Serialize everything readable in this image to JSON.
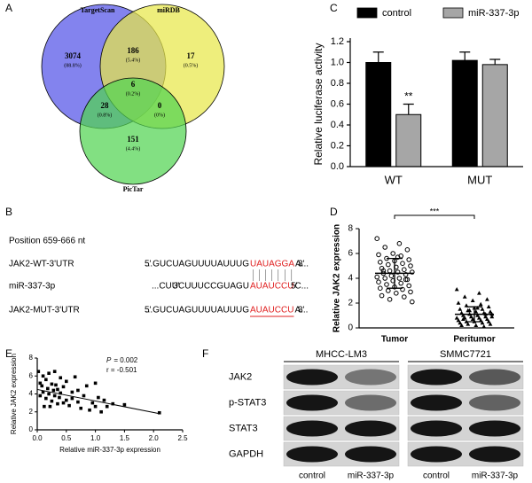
{
  "panel_labels": [
    "A",
    "B",
    "C",
    "D",
    "E",
    "F"
  ],
  "venn": {
    "sets": [
      {
        "name": "TargetScan",
        "color": "#5353e8"
      },
      {
        "name": "miRDB",
        "color": "#e8e84a"
      },
      {
        "name": "PicTar",
        "color": "#52d452"
      }
    ],
    "regions": [
      {
        "count": 3074,
        "percent": "(88.8%)"
      },
      {
        "count": 186,
        "percent": "(5.4%)"
      },
      {
        "count": 17,
        "percent": "(0.5%)"
      },
      {
        "count": 6,
        "percent": "(0.2%)"
      },
      {
        "count": 28,
        "percent": "(0.8%)"
      },
      {
        "count": 0,
        "percent": "(0%)"
      },
      {
        "count": 151,
        "percent": "(4.4%)"
      }
    ]
  },
  "sequence": {
    "position": "Position 659-666 nt",
    "rows": [
      {
        "label": "JAK2-WT-3'UTR",
        "start": "5'",
        "seq": "...GUCUAGUUUUAUUUG",
        "site": "UAUAGGA",
        "tail": "A...",
        "end": "3'"
      },
      {
        "label": "miR-337-3p",
        "start": "3'",
        "seq": "...CUUCUUUCCGUAGU",
        "site": "AUAUCCU",
        "tail": "C...",
        "end": "5'"
      },
      {
        "label": "JAK2-MUT-3'UTR",
        "start": "5'",
        "seq": "...GUCUAGUUUUAUUUG",
        "site": "AUAUCCU",
        "tail": "A...",
        "end": "3'"
      }
    ]
  },
  "chart_data": [
    {
      "type": "bar",
      "ylabel": "Relative luciferase activity",
      "categories": [
        "WT",
        "MUT"
      ],
      "series": [
        {
          "name": "control",
          "color": "#000000",
          "values": [
            1.0,
            1.02
          ],
          "errors": [
            0.1,
            0.08
          ]
        },
        {
          "name": "miR-337-3p",
          "color": "#a6a6a6",
          "values": [
            0.5,
            0.98
          ],
          "errors": [
            0.1,
            0.05
          ]
        }
      ],
      "ylim": [
        0,
        1.2
      ],
      "yticks": [
        {
          "value": 0,
          "label": "0.0"
        },
        0.2,
        0.4,
        0.6,
        0.8,
        {
          "value": 1,
          "label": "1.0"
        },
        1.2
      ],
      "legend": "top",
      "annotations": [
        "**"
      ]
    },
    {
      "type": "dot",
      "ylabel": "Relative JAK2 expression",
      "groups": [
        {
          "name": "Tumor",
          "marker": "circle",
          "mean": 4.4,
          "sd": 1.2,
          "values": [
            7.2,
            6.8,
            6.5,
            6.3,
            6.0,
            5.9,
            5.8,
            5.6,
            5.5,
            5.4,
            5.3,
            5.2,
            5.1,
            5.0,
            4.9,
            4.8,
            4.7,
            4.6,
            4.5,
            4.5,
            4.4,
            4.3,
            4.2,
            4.1,
            4.0,
            4.0,
            3.9,
            3.8,
            3.7,
            3.6,
            3.5,
            3.4,
            3.3,
            3.2,
            3.1,
            3.0,
            2.9,
            2.8,
            2.6,
            2.5,
            2.3,
            2.1,
            5.7,
            4.6,
            3.9
          ]
        },
        {
          "name": "Peritumor",
          "marker": "triangle",
          "mean": 1.1,
          "sd": 0.6,
          "values": [
            3.1,
            2.8,
            2.5,
            2.3,
            2.2,
            2.0,
            1.9,
            1.8,
            1.7,
            1.6,
            1.5,
            1.5,
            1.4,
            1.3,
            1.3,
            1.2,
            1.2,
            1.1,
            1.1,
            1.0,
            1.0,
            0.9,
            0.9,
            0.8,
            0.8,
            0.8,
            0.7,
            0.7,
            0.6,
            0.6,
            0.5,
            0.5,
            0.5,
            0.4,
            0.4,
            0.3,
            0.3,
            0.2,
            0.2,
            0.1,
            1.4,
            0.9,
            1.6,
            0.7,
            1.1
          ]
        }
      ],
      "ylim": [
        0,
        8
      ],
      "yticks": [
        0,
        2,
        4,
        6,
        8
      ],
      "annotations": [
        "***"
      ]
    },
    {
      "type": "scatter",
      "xlabel": "Relative miR-337-3p expression",
      "ylabel": "Relative JAK2 expression",
      "x": [
        0.02,
        0.05,
        0.05,
        0.08,
        0.1,
        0.1,
        0.12,
        0.15,
        0.15,
        0.18,
        0.2,
        0.2,
        0.22,
        0.25,
        0.25,
        0.28,
        0.3,
        0.3,
        0.32,
        0.35,
        0.35,
        0.38,
        0.4,
        0.4,
        0.45,
        0.45,
        0.5,
        0.5,
        0.55,
        0.6,
        0.6,
        0.65,
        0.7,
        0.7,
        0.75,
        0.8,
        0.85,
        0.9,
        0.95,
        1.0,
        1.0,
        1.05,
        1.1,
        1.15,
        1.2,
        1.3,
        1.5,
        2.1
      ],
      "y": [
        6.5,
        5.2,
        3.8,
        4.9,
        6.0,
        4.2,
        2.6,
        5.6,
        3.5,
        4.6,
        6.3,
        4.0,
        2.6,
        5.1,
        3.2,
        4.4,
        6.5,
        3.8,
        5.0,
        2.9,
        4.5,
        3.6,
        5.8,
        4.1,
        3.0,
        4.8,
        3.3,
        5.4,
        2.7,
        4.2,
        3.5,
        5.9,
        3.1,
        4.4,
        2.4,
        3.8,
        4.9,
        2.2,
        3.0,
        5.2,
        2.6,
        3.6,
        2.0,
        3.3,
        2.6,
        2.9,
        2.8,
        1.9
      ],
      "color": "#000000",
      "fit": {
        "x": [
          0,
          2.1
        ],
        "y": [
          4.5,
          1.8
        ]
      },
      "xlim": [
        0,
        2.5
      ],
      "ylim": [
        0,
        8
      ],
      "xticks": [
        {
          "value": 0,
          "label": "0.0"
        },
        0.5,
        {
          "value": 1,
          "label": "1.0"
        },
        1.5,
        {
          "value": 2,
          "label": "2.0"
        },
        2.5
      ],
      "yticks": [
        0,
        2,
        4,
        6,
        8
      ],
      "annotations": [
        {
          "symbol": "P",
          "text": "= 0.002"
        },
        "r = -0.501"
      ]
    }
  ],
  "blot": {
    "cell_lines": [
      "MHCC-LM3",
      "SMMC7721"
    ],
    "proteins": [
      "JAK2",
      "p-STAT3",
      "STAT3",
      "GAPDH"
    ],
    "lanes": [
      "control",
      "miR-337-3p",
      "control",
      "miR-337-3p"
    ]
  }
}
